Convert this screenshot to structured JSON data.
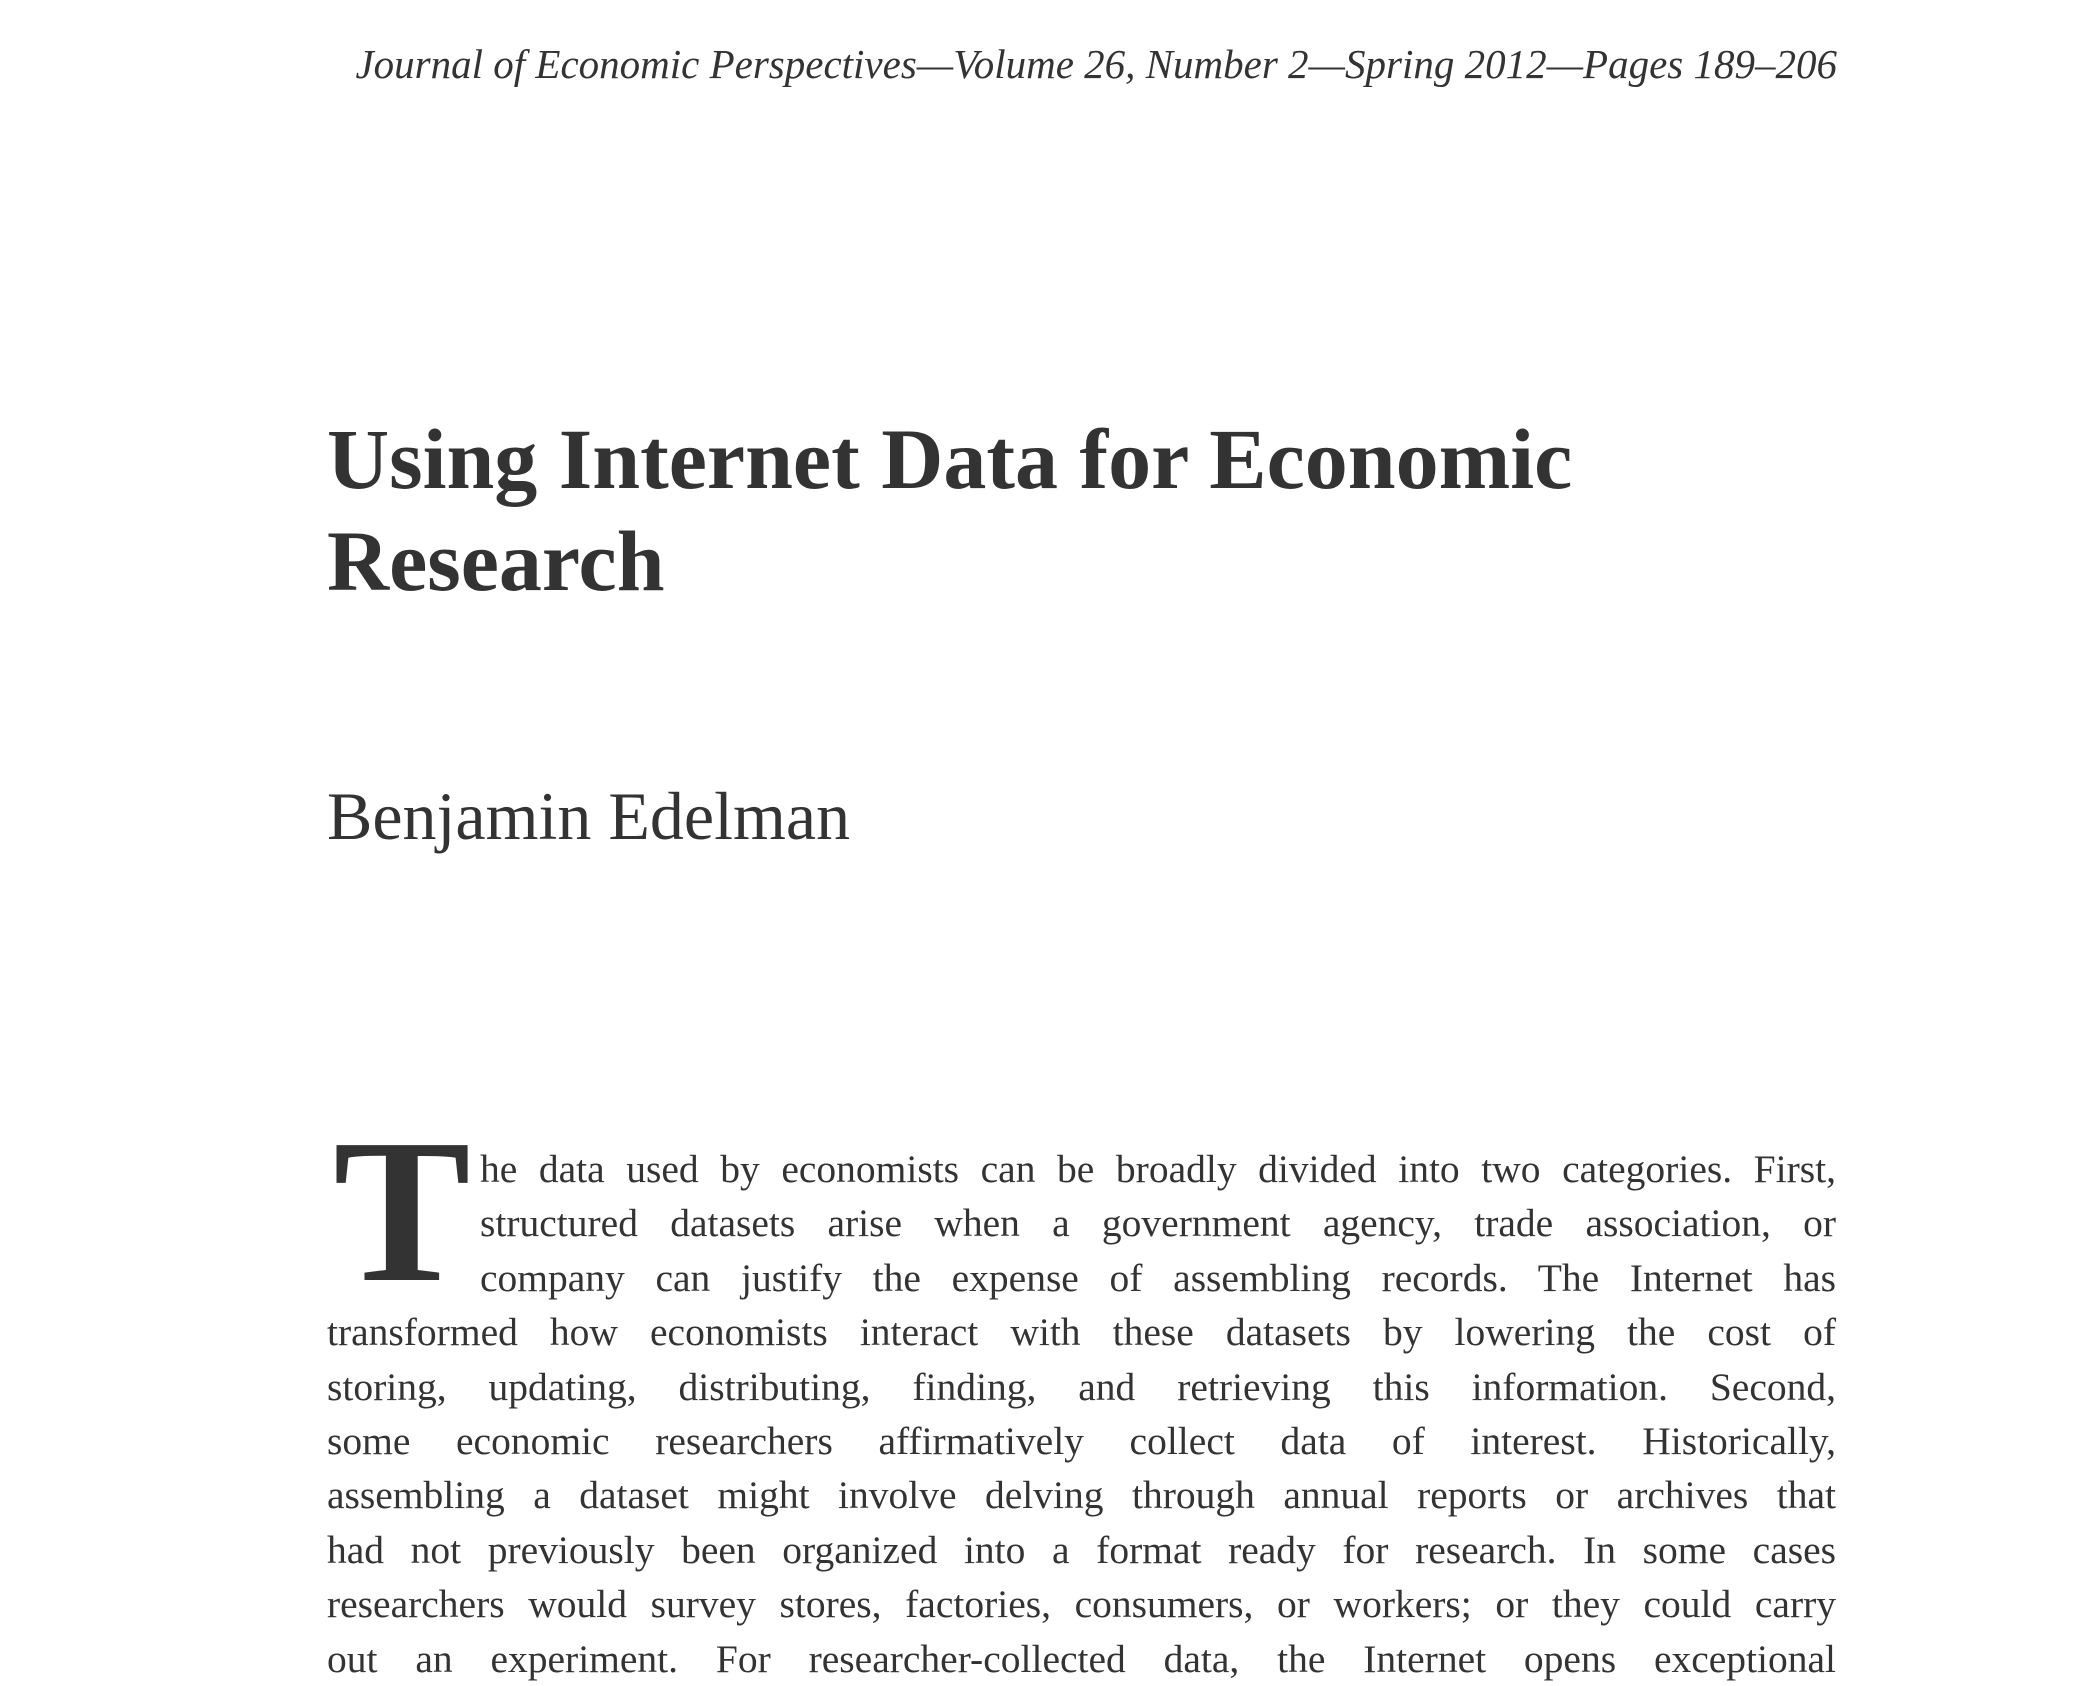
{
  "header": {
    "running_head": "Journal of Economic Perspectives—Volume 26, Number 2—Spring 2012—Pages 189–206"
  },
  "article": {
    "title_lines": [
      "Using Internet Data for Economic",
      "Research"
    ],
    "author": "Benjamin Edelman",
    "drop_cap": "T",
    "body_lines": [
      "he data used by economists can be broadly divided into two categories. First,",
      "structured datasets arise when a government agency, trade association, or",
      "company can justify the expense of assembling records. The Internet has",
      "transformed how economists interact with these datasets by lowering the cost of",
      "storing, updating, distributing, finding, and retrieving this information. Second,",
      "some economic researchers affirmatively collect data of interest. Historically,",
      "assembling a dataset might involve delving through annual reports or archives that",
      "had not previously been organized into a format ready for research. In some cases",
      "researchers would survey stores, factories, consumers, or workers; or they could carry",
      "out an experiment. For researcher-collected data, the Internet opens exceptional"
    ]
  }
}
